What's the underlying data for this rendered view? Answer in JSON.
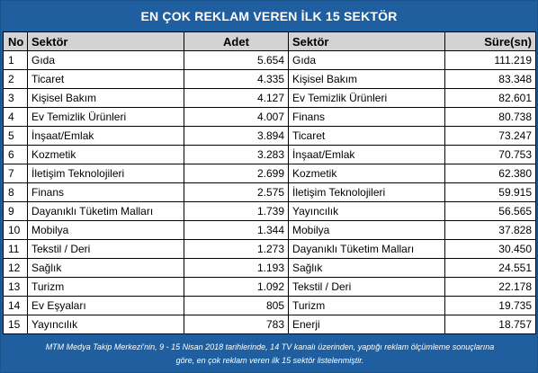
{
  "title": "EN ÇOK REKLAM VEREN İLK 15 SEKTÖR",
  "headers": {
    "no": "No",
    "sektor1": "Sektör",
    "adet": "Adet",
    "sektor2": "Sektör",
    "sure": "Süre(sn)"
  },
  "rows": [
    {
      "no": "1",
      "sektor1": "Gıda",
      "adet": "5.654",
      "sektor2": "Gıda",
      "sure": "111.219"
    },
    {
      "no": "2",
      "sektor1": "Ticaret",
      "adet": "4.335",
      "sektor2": "Kişisel Bakım",
      "sure": "83.348"
    },
    {
      "no": "3",
      "sektor1": "Kişisel Bakım",
      "adet": "4.127",
      "sektor2": "Ev Temizlik Ürünleri",
      "sure": "82.601"
    },
    {
      "no": "4",
      "sektor1": "Ev Temizlik Ürünleri",
      "adet": "4.007",
      "sektor2": "Finans",
      "sure": "80.738"
    },
    {
      "no": "5",
      "sektor1": "İnşaat/Emlak",
      "adet": "3.894",
      "sektor2": "Ticaret",
      "sure": "73.247"
    },
    {
      "no": "6",
      "sektor1": "Kozmetik",
      "adet": "3.283",
      "sektor2": "İnşaat/Emlak",
      "sure": "70.753"
    },
    {
      "no": "7",
      "sektor1": "İletişim Teknolojileri",
      "adet": "2.699",
      "sektor2": "Kozmetik",
      "sure": "62.380"
    },
    {
      "no": "8",
      "sektor1": "Finans",
      "adet": "2.575",
      "sektor2": "İletişim Teknolojileri",
      "sure": "59.915"
    },
    {
      "no": "9",
      "sektor1": "Dayanıklı Tüketim Malları",
      "adet": "1.739",
      "sektor2": "Yayıncılık",
      "sure": "56.565"
    },
    {
      "no": "10",
      "sektor1": "Mobilya",
      "adet": "1.344",
      "sektor2": "Mobilya",
      "sure": "37.828"
    },
    {
      "no": "11",
      "sektor1": "Tekstil / Deri",
      "adet": "1.273",
      "sektor2": "Dayanıklı Tüketim Malları",
      "sure": "30.450"
    },
    {
      "no": "12",
      "sektor1": "Sağlık",
      "adet": "1.193",
      "sektor2": "Sağlık",
      "sure": "24.551"
    },
    {
      "no": "13",
      "sektor1": "Turizm",
      "adet": "1.092",
      "sektor2": "Tekstil / Deri",
      "sure": "22.178"
    },
    {
      "no": "14",
      "sektor1": "Ev Eşyaları",
      "adet": "805",
      "sektor2": "Turizm",
      "sure": "19.735"
    },
    {
      "no": "15",
      "sektor1": "Yayıncılık",
      "adet": "783",
      "sektor2": "Enerji",
      "sure": "18.757"
    }
  ],
  "footer": {
    "line1": "MTM Medya Takip Merkezi'nin, 9 - 15 Nisan 2018 tarihlerinde, 14 TV kanalı üzerinden,  yaptığı reklam ölçümleme sonuçlarına",
    "line2": "göre, en çok reklam veren ilk 15 sektör  listelenmiştir."
  },
  "colors": {
    "panel_bg": "#1f5fa0",
    "header_bg": "#d3d3d3",
    "title_text": "#ffffff"
  }
}
